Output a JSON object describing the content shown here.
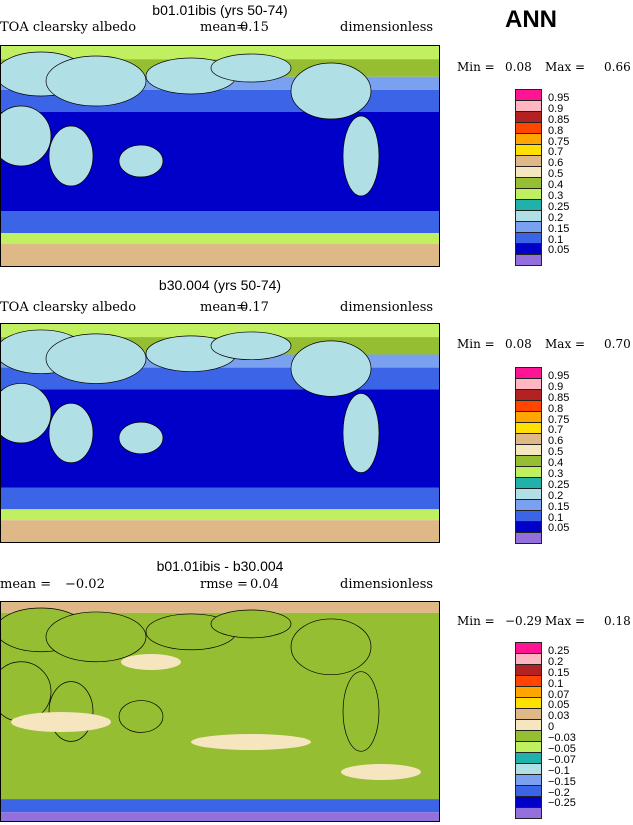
{
  "season": "ANN",
  "colors": [
    "#ff1493",
    "#ffb6c1",
    "#b22222",
    "#ff4500",
    "#ffa500",
    "#ffe000",
    "#deb887",
    "#f5e6c0",
    "#96be32",
    "#c0f060",
    "#20b2aa",
    "#b0e0e6",
    "#7aa0f0",
    "#3c64e6",
    "#0000c8",
    "#9370db"
  ],
  "chart_data": [
    {
      "type": "heatmap",
      "title": "b01.01ibis (yrs 50-74)",
      "variable": "TOA clearsky albedo",
      "mean_label": "mean=",
      "mean": "0.15",
      "units": "dimensionless",
      "min_label": "Min =",
      "min": "0.08",
      "max_label": "Max =",
      "max": "0.66",
      "levels": [
        "0.95",
        "0.9",
        "0.85",
        "0.8",
        "0.75",
        "0.7",
        "0.6",
        "0.5",
        "0.4",
        "0.3",
        "0.25",
        "0.2",
        "0.15",
        "0.1",
        "0.05"
      ]
    },
    {
      "type": "heatmap",
      "title": "b30.004 (yrs 50-74)",
      "variable": "TOA clearsky albedo",
      "mean_label": "mean=",
      "mean": "0.17",
      "units": "dimensionless",
      "min_label": "Min =",
      "min": "0.08",
      "max_label": "Max =",
      "max": "0.70",
      "levels": [
        "0.95",
        "0.9",
        "0.85",
        "0.8",
        "0.75",
        "0.7",
        "0.6",
        "0.5",
        "0.4",
        "0.3",
        "0.25",
        "0.2",
        "0.15",
        "0.1",
        "0.05"
      ]
    },
    {
      "type": "heatmap",
      "title": "b01.01ibis - b30.004",
      "mean_label": "mean =",
      "mean": "−0.02",
      "rmse_label": "rmse =",
      "rmse": "0.04",
      "units": "dimensionless",
      "min_label": "Min =",
      "min": "−0.29",
      "max_label": "Max =",
      "max": "0.18",
      "levels": [
        "0.25",
        "0.2",
        "0.15",
        "0.1",
        "0.07",
        "0.05",
        "0.03",
        "0",
        "−0.03",
        "−0.05",
        "−0.07",
        "−0.1",
        "−0.15",
        "−0.2",
        "−0.25"
      ]
    }
  ]
}
